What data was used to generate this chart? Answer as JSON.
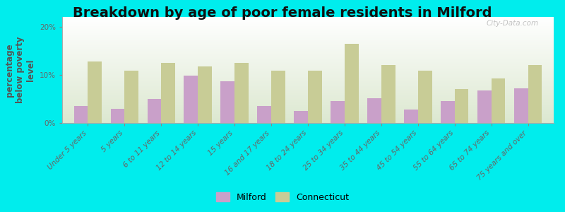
{
  "title": "Breakdown by age of poor female residents in Milford",
  "ylabel": "percentage\nbelow poverty\nlevel",
  "categories": [
    "Under 5 years",
    "5 years",
    "6 to 11 years",
    "12 to 14 years",
    "15 years",
    "16 and 17 years",
    "18 to 24 years",
    "25 to 34 years",
    "35 to 44 years",
    "45 to 54 years",
    "55 to 64 years",
    "65 to 74 years",
    "75 years and over"
  ],
  "milford_values": [
    3.5,
    3.0,
    5.0,
    9.8,
    8.7,
    3.5,
    2.5,
    4.5,
    5.2,
    2.8,
    4.5,
    6.8,
    7.2
  ],
  "connecticut_values": [
    12.8,
    10.8,
    12.5,
    11.8,
    12.5,
    10.8,
    10.8,
    16.5,
    12.0,
    10.8,
    7.0,
    9.2,
    12.0
  ],
  "milford_color": "#c9a0c9",
  "connecticut_color": "#c8cc96",
  "background_color": "#00eded",
  "plot_bg_top": "#ffffff",
  "plot_bg_bottom": "#dce8d0",
  "ylim": [
    0,
    22
  ],
  "yticks": [
    0,
    10,
    20
  ],
  "ytick_labels": [
    "0%",
    "10%",
    "20%"
  ],
  "bar_width": 0.38,
  "title_fontsize": 14,
  "axis_label_fontsize": 8.5,
  "tick_fontsize": 7.5,
  "legend_fontsize": 9,
  "watermark": "City-Data.com"
}
